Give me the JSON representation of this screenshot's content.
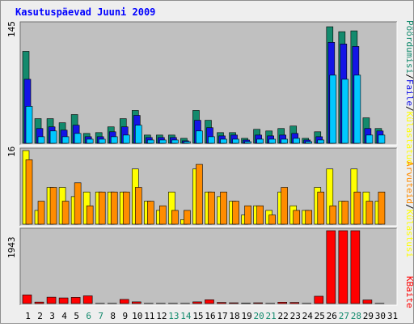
{
  "colors": {
    "page_bg": "#eeeeee",
    "panel_bg": "#c0c0c0",
    "title": "#0000ff",
    "pages_total": "#138a6d",
    "pages_unique": "#1414e6",
    "files": "#00c8ff",
    "visits": "#ffff00",
    "hosts": "#ff8c00",
    "kbytes": "#ff0000",
    "weekend_tick": "#138a6d",
    "weekday_tick": "#000000"
  },
  "chart_data": {
    "type": "bar",
    "title": "Kasutuspäevad Juuni 2009",
    "categories": [
      "1",
      "2",
      "3",
      "4",
      "5",
      "6",
      "7",
      "8",
      "9",
      "10",
      "11",
      "12",
      "13",
      "14",
      "15",
      "16",
      "17",
      "18",
      "19",
      "20",
      "21",
      "22",
      "23",
      "24",
      "25",
      "26",
      "27",
      "28",
      "29",
      "30",
      "31"
    ],
    "weekend_days": [
      "6",
      "7",
      "13",
      "14",
      "20",
      "21",
      "27",
      "28"
    ],
    "panels": [
      {
        "id": "top",
        "max_label": "145",
        "ylim": [
          0,
          145
        ],
        "legend": [
          {
            "label": "Pöördumisi",
            "color": "#138a6d"
          },
          {
            "label": "/",
            "color": "#000000"
          },
          {
            "label": "Faile",
            "color": "#1414e6"
          },
          {
            "label": "/",
            "color": "#000000"
          },
          {
            "label": "Külastatud",
            "color": "#00c8ff"
          }
        ],
        "series": [
          {
            "name": "Pöördumisi",
            "color": "#138a6d",
            "values": [
              112,
              30,
              30,
              25,
              35,
              12,
              13,
              20,
              30,
              40,
              10,
              10,
              10,
              6,
              40,
              28,
              13,
              13,
              6,
              17,
              15,
              18,
              21,
              6,
              14,
              142,
              136,
              137,
              31,
              18,
              0
            ]
          },
          {
            "name": "Faile",
            "color": "#1414e6",
            "values": [
              78,
              18,
              20,
              16,
              22,
              8,
              8,
              14,
              20,
              34,
              7,
              7,
              7,
              3,
              28,
              19,
              9,
              10,
              4,
              10,
              9,
              10,
              12,
              4,
              8,
              123,
              121,
              118,
              18,
              15,
              0
            ]
          },
          {
            "name": "Külastatud",
            "color": "#00c8ff",
            "values": [
              45,
              8,
              15,
              8,
              12,
              5,
              5,
              8,
              10,
              22,
              4,
              4,
              4,
              2,
              15,
              8,
              5,
              5,
              2,
              5,
              5,
              5,
              6,
              2,
              4,
              83,
              78,
              83,
              10,
              10,
              0
            ]
          }
        ]
      },
      {
        "id": "middle",
        "max_label": "16",
        "ylim": [
          0,
          16
        ],
        "legend": [
          {
            "label": "Arvuteid",
            "color": "#ff8c00"
          },
          {
            "label": "/",
            "color": "#000000"
          },
          {
            "label": "Külastusi",
            "color": "#ffff00"
          }
        ],
        "series": [
          {
            "name": "Külastusi",
            "color": "#ffff00",
            "values": [
              16,
              3,
              8,
              8,
              6,
              7,
              7,
              7,
              7,
              12,
              5,
              3,
              7,
              1,
              12,
              7,
              6,
              5,
              2,
              4,
              3,
              7,
              4,
              3,
              8,
              12,
              5,
              12,
              7,
              5,
              0
            ]
          },
          {
            "name": "Arvuteid",
            "color": "#ff8c00",
            "values": [
              14,
              5,
              8,
              5,
              9,
              4,
              7,
              7,
              7,
              8,
              5,
              4,
              3,
              3,
              13,
              7,
              7,
              5,
              4,
              4,
              2,
              8,
              3,
              3,
              7,
              4,
              5,
              7,
              5,
              7,
              0
            ]
          }
        ]
      },
      {
        "id": "bottom",
        "max_label": "1943",
        "ylim": [
          0,
          1943
        ],
        "legend": [
          {
            "label": "KBaite",
            "color": "#ff0000"
          }
        ],
        "series": [
          {
            "name": "KBaite",
            "color": "#ff0000",
            "values": [
              230,
              40,
              170,
              150,
              165,
              205,
              5,
              5,
              110,
              45,
              5,
              5,
              5,
              5,
              45,
              100,
              30,
              20,
              10,
              20,
              5,
              35,
              30,
              5,
              195,
              1943,
              1943,
              1943,
              95,
              5,
              0
            ]
          }
        ]
      }
    ]
  }
}
